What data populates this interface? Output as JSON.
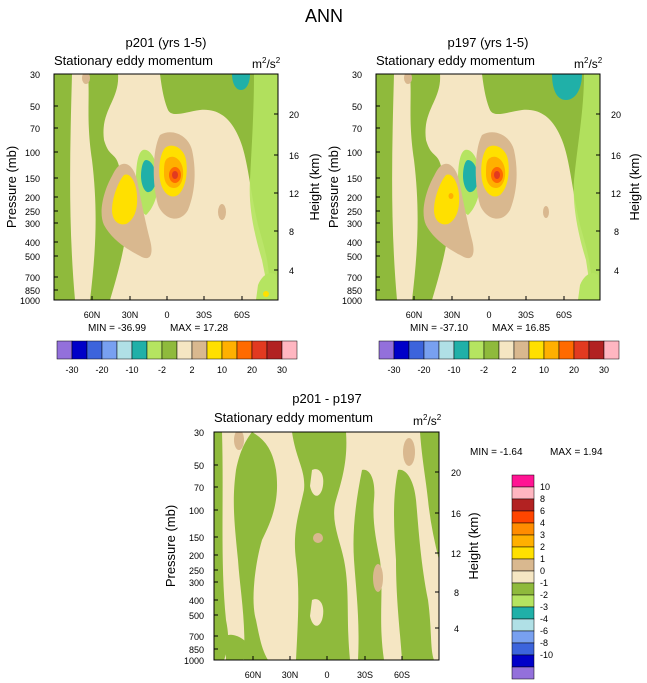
{
  "page_title": "ANN",
  "colors": {
    "tan_light": "#f5e6c3",
    "tan": "#d9b88f",
    "green_dark": "#8fba3c",
    "green_light": "#b5e461",
    "teal": "#20b0a8",
    "yellow": "#ffe000",
    "gold": "#ffb000",
    "orange": "#ff6a00",
    "red": "#e23a20"
  },
  "chart_data": [
    {
      "id": "p201",
      "type": "heatmap",
      "title": "p201 (yrs 1-5)",
      "subtitle": "Stationary eddy momentum",
      "units_base": "m",
      "units_sup1": "2",
      "units_mid": "/s",
      "units_sup2": "2",
      "ylabel": "Pressure (mb)",
      "ylabel_right": "Height (km)",
      "x_ticks": [
        "60N",
        "30N",
        "0",
        "30S",
        "60S"
      ],
      "y_ticks": [
        "30",
        "50",
        "70",
        "100",
        "150",
        "200",
        "250",
        "300",
        "400",
        "500",
        "700",
        "850",
        "1000"
      ],
      "height_ticks": [
        "20",
        "16",
        "12",
        "8",
        "4"
      ],
      "min_label": "MIN = -36.99",
      "max_label": "MAX =  17.28",
      "min": -36.99,
      "max": 17.28,
      "colorbar_labels": [
        "-30",
        "-20",
        "-10",
        "-2",
        "2",
        "10",
        "20",
        "30"
      ]
    },
    {
      "id": "p197",
      "type": "heatmap",
      "title": "p197 (yrs 1-5)",
      "subtitle": "Stationary eddy momentum",
      "units_base": "m",
      "units_sup1": "2",
      "units_mid": "/s",
      "units_sup2": "2",
      "ylabel": "Pressure (mb)",
      "ylabel_right": "Height (km)",
      "x_ticks": [
        "60N",
        "30N",
        "0",
        "30S",
        "60S"
      ],
      "y_ticks": [
        "30",
        "50",
        "70",
        "100",
        "150",
        "200",
        "250",
        "300",
        "400",
        "500",
        "700",
        "850",
        "1000"
      ],
      "height_ticks": [
        "20",
        "16",
        "12",
        "8",
        "4"
      ],
      "min_label": "MIN = -37.10",
      "max_label": "MAX =  16.85",
      "min": -37.1,
      "max": 16.85,
      "colorbar_labels": [
        "-30",
        "-20",
        "-10",
        "-2",
        "2",
        "10",
        "20",
        "30"
      ]
    },
    {
      "id": "diff",
      "type": "heatmap",
      "title": "p201 - p197",
      "subtitle": "Stationary eddy momentum",
      "units_base": "m",
      "units_sup1": "2",
      "units_mid": "/s",
      "units_sup2": "2",
      "ylabel": "Pressure (mb)",
      "ylabel_right": "Height (km)",
      "x_ticks": [
        "60N",
        "30N",
        "0",
        "30S",
        "60S"
      ],
      "y_ticks": [
        "30",
        "50",
        "70",
        "100",
        "150",
        "200",
        "250",
        "300",
        "400",
        "500",
        "700",
        "850",
        "1000"
      ],
      "height_ticks": [
        "20",
        "16",
        "12",
        "8",
        "4"
      ],
      "min_label": "MIN =  -1.64",
      "max_label": "MAX =   1.94",
      "min": -1.64,
      "max": 1.94,
      "colorbar_labels": [
        "10",
        "8",
        "6",
        "4",
        "3",
        "2",
        "1",
        "0",
        "-1",
        "-2",
        "-3",
        "-4",
        "-6",
        "-8",
        "-10"
      ]
    }
  ]
}
